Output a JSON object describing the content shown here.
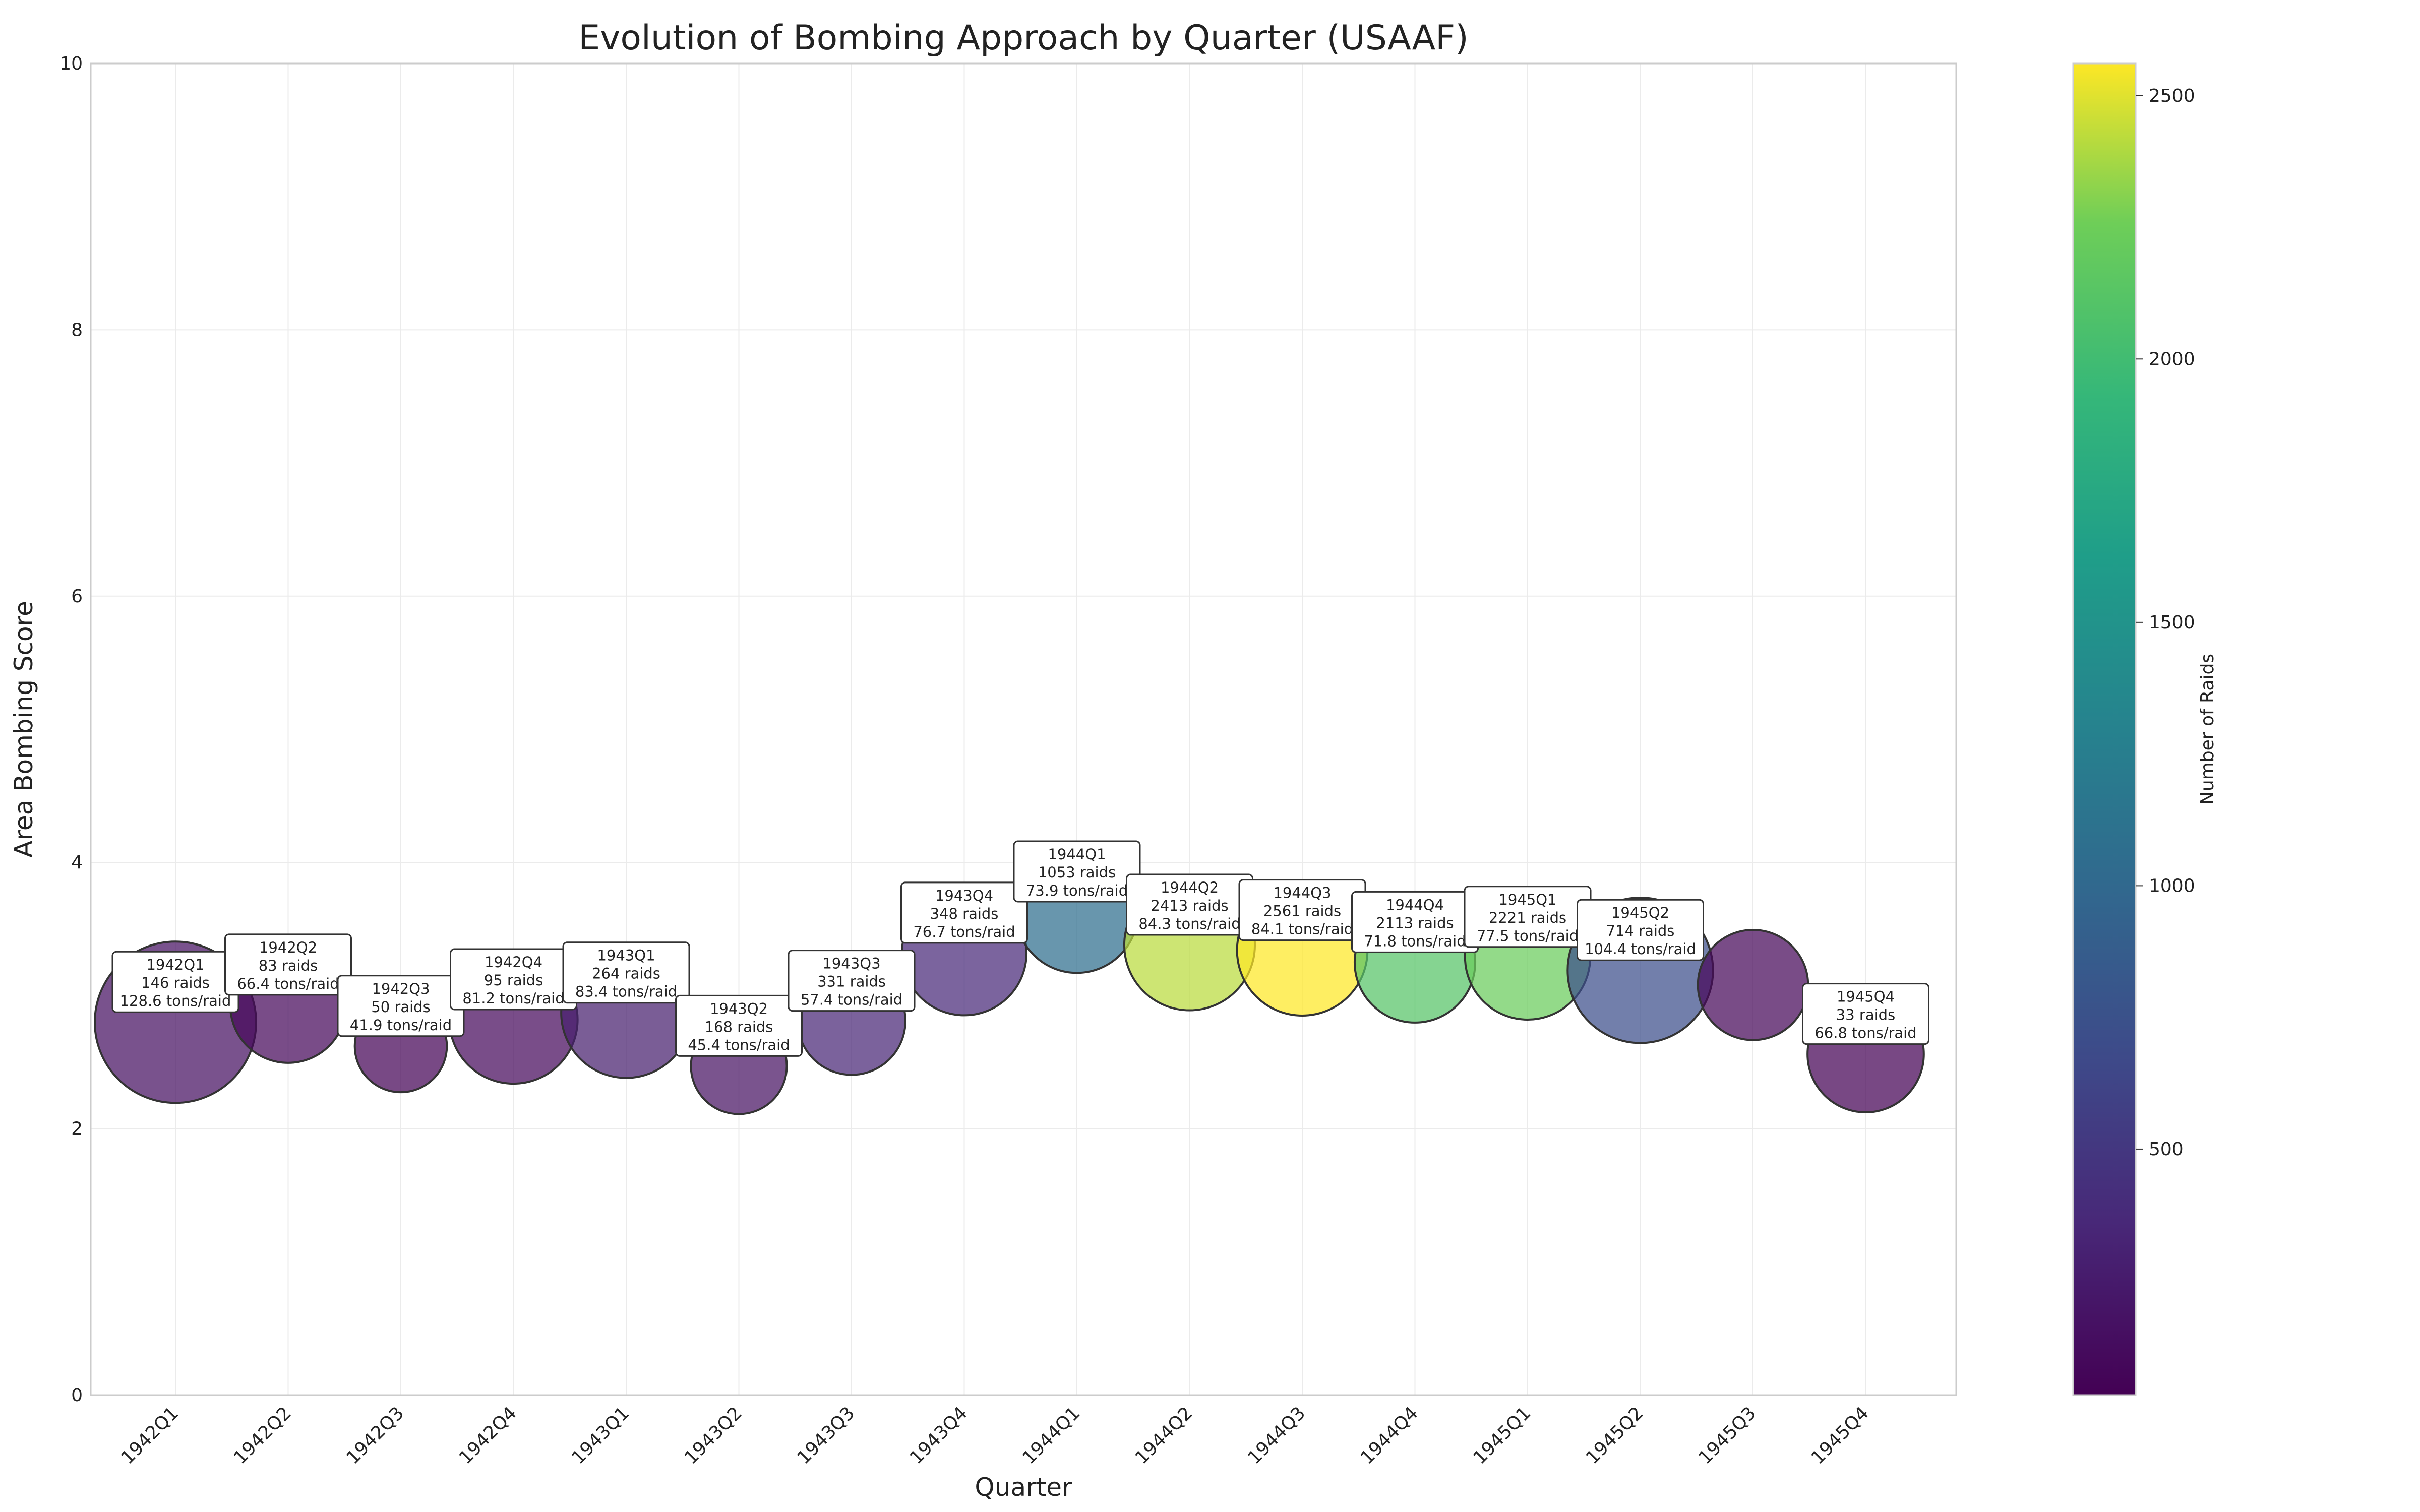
{
  "chart_data": {
    "type": "scatter",
    "title": "Evolution of Bombing Approach by Quarter (USAAF)",
    "xlabel": "Quarter",
    "ylabel": "Area Bombing Score",
    "ylim": [
      0,
      10
    ],
    "yticks": [
      0,
      2,
      4,
      6,
      8,
      10
    ],
    "grid": true,
    "colorbar": {
      "label": "Number of Raids",
      "range": [
        33,
        2561
      ],
      "ticks": [
        500,
        1000,
        1500,
        2000,
        2500
      ],
      "colormap": [
        "#440154",
        "#3b528b",
        "#21918c",
        "#5ec962",
        "#fde725"
      ]
    },
    "annotation_suffixes": {
      "raids": "raids",
      "tons": "tons/raid"
    },
    "points": [
      {
        "quarter": "1942Q1",
        "score": 2.8,
        "raids": 146,
        "tons_per_raid": 128.6,
        "annotated": true
      },
      {
        "quarter": "1942Q2",
        "score": 2.93,
        "raids": 83,
        "tons_per_raid": 66.4,
        "annotated": true
      },
      {
        "quarter": "1942Q3",
        "score": 2.62,
        "raids": 50,
        "tons_per_raid": 41.9,
        "annotated": true
      },
      {
        "quarter": "1942Q4",
        "score": 2.82,
        "raids": 95,
        "tons_per_raid": 81.2,
        "annotated": true
      },
      {
        "quarter": "1943Q1",
        "score": 2.87,
        "raids": 264,
        "tons_per_raid": 83.4,
        "annotated": true
      },
      {
        "quarter": "1943Q2",
        "score": 2.47,
        "raids": 168,
        "tons_per_raid": 45.4,
        "annotated": true
      },
      {
        "quarter": "1943Q3",
        "score": 2.81,
        "raids": 331,
        "tons_per_raid": 57.4,
        "annotated": true
      },
      {
        "quarter": "1943Q4",
        "score": 3.32,
        "raids": 348,
        "tons_per_raid": 76.7,
        "annotated": true
      },
      {
        "quarter": "1944Q1",
        "score": 3.63,
        "raids": 1053,
        "tons_per_raid": 73.9,
        "annotated": true
      },
      {
        "quarter": "1944Q2",
        "score": 3.38,
        "raids": 2413,
        "tons_per_raid": 84.3,
        "annotated": true
      },
      {
        "quarter": "1944Q3",
        "score": 3.34,
        "raids": 2561,
        "tons_per_raid": 84.1,
        "annotated": true
      },
      {
        "quarter": "1944Q4",
        "score": 3.25,
        "raids": 2113,
        "tons_per_raid": 71.8,
        "annotated": true
      },
      {
        "quarter": "1945Q1",
        "score": 3.29,
        "raids": 2221,
        "tons_per_raid": 77.5,
        "annotated": true
      },
      {
        "quarter": "1945Q2",
        "score": 3.19,
        "raids": 714,
        "tons_per_raid": 104.4,
        "annotated": true
      },
      {
        "quarter": "1945Q3",
        "score": 3.08,
        "raids": 80,
        "tons_per_raid": 60.0,
        "annotated": false
      },
      {
        "quarter": "1945Q4",
        "score": 2.56,
        "raids": 33,
        "tons_per_raid": 66.8,
        "annotated": true
      }
    ]
  }
}
